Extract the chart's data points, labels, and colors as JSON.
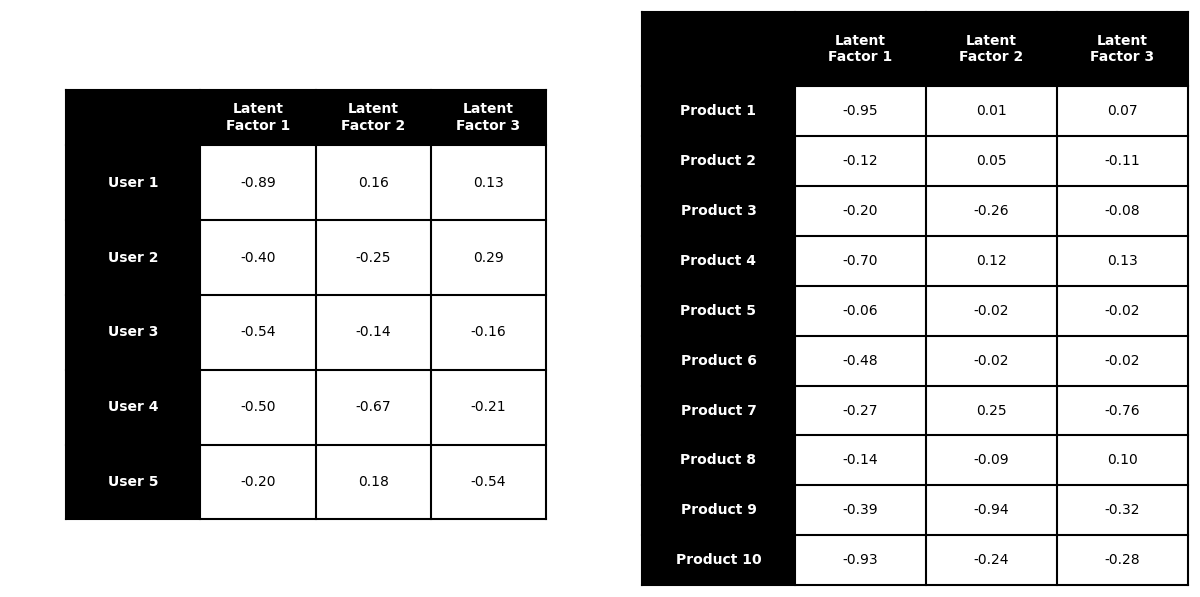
{
  "user_rows": [
    "User 1",
    "User 2",
    "User 3",
    "User 4",
    "User 5"
  ],
  "user_cols": [
    "Latent\nFactor 1",
    "Latent\nFactor 2",
    "Latent\nFactor 3"
  ],
  "user_data": [
    [
      "-0.89",
      "0.16",
      "0.13"
    ],
    [
      "-0.40",
      "-0.25",
      "0.29"
    ],
    [
      "-0.54",
      "-0.14",
      "-0.16"
    ],
    [
      "-0.50",
      "-0.67",
      "-0.21"
    ],
    [
      "-0.20",
      "0.18",
      "-0.54"
    ]
  ],
  "product_rows": [
    "Product 1",
    "Product 2",
    "Product 3",
    "Product 4",
    "Product 5",
    "Product 6",
    "Product 7",
    "Product 8",
    "Product 9",
    "Product 10"
  ],
  "product_cols": [
    "Latent\nFactor 1",
    "Latent\nFactor 2",
    "Latent\nFactor 3"
  ],
  "product_data": [
    [
      "-0.95",
      "0.01",
      "0.07"
    ],
    [
      "-0.12",
      "0.05",
      "-0.11"
    ],
    [
      "-0.20",
      "-0.26",
      "-0.08"
    ],
    [
      "-0.70",
      "0.12",
      "0.13"
    ],
    [
      "-0.06",
      "-0.02",
      "-0.02"
    ],
    [
      "-0.48",
      "-0.02",
      "-0.02"
    ],
    [
      "-0.27",
      "0.25",
      "-0.76"
    ],
    [
      "-0.14",
      "-0.09",
      "0.10"
    ],
    [
      "-0.39",
      "-0.94",
      "-0.32"
    ],
    [
      "-0.93",
      "-0.24",
      "-0.28"
    ]
  ],
  "header_bg": "#000000",
  "header_fg": "#ffffff",
  "row_header_bg": "#000000",
  "row_header_fg": "#ffffff",
  "cell_bg": "#ffffff",
  "cell_fg": "#000000",
  "border_color": "#000000",
  "background_color": "#ffffff",
  "header_fontsize": 10,
  "cell_fontsize": 10,
  "row_header_fontsize": 10
}
